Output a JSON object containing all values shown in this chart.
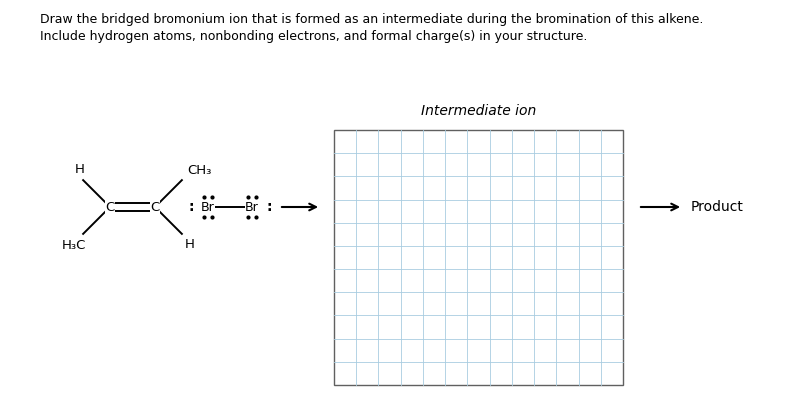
{
  "title_line1": "Draw the bridged bromonium ion that is formed as an intermediate during the bromination of this alkene.",
  "title_line2": "Include hydrogen atoms, nonbonding electrons, and formal charge(s) in your structure.",
  "intermediate_label": "Intermediate ion",
  "product_label": "Product",
  "background_color": "#ffffff",
  "grid_color": "#a8cce0",
  "border_color": "#606060",
  "text_color": "#000000",
  "title_fontsize": 9.0,
  "label_fontsize": 10,
  "mol_fontsize": 9.5,
  "br_fontsize": 9.0,
  "grid_cols": 13,
  "grid_rows": 11,
  "fig_width": 7.93,
  "fig_height": 4.12
}
